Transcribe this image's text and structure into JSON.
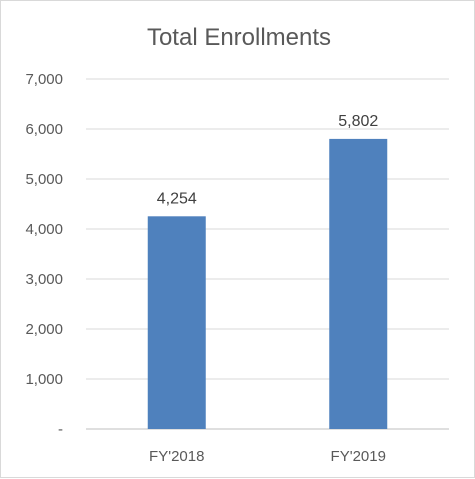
{
  "chart_data": {
    "type": "bar",
    "title": "Total Enrollments",
    "categories": [
      "FY'2018",
      "FY'2019"
    ],
    "values": [
      4254,
      5802
    ],
    "data_labels": [
      "4,254",
      "5,802"
    ],
    "y_tick_labels": [
      "-",
      "1,000",
      "2,000",
      "3,000",
      "4,000",
      "5,000",
      "6,000",
      "7,000"
    ],
    "ylim": [
      0,
      7000
    ],
    "y_step": 1000,
    "grid": true,
    "legend": "none",
    "bar_color": "#4f81bd"
  }
}
